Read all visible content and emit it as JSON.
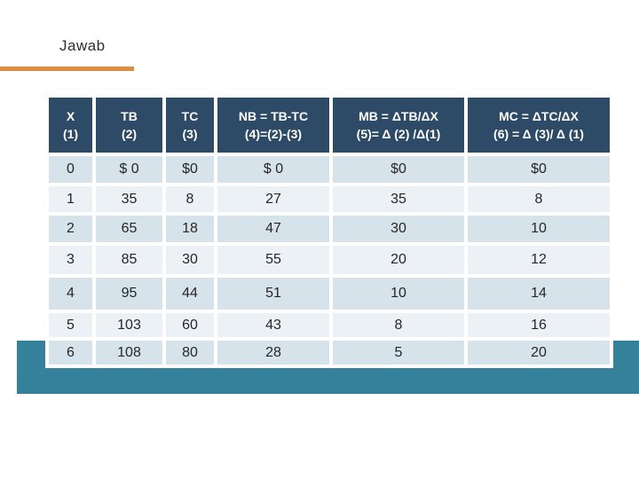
{
  "title": "Jawab",
  "table": {
    "headers": [
      {
        "line1": "X",
        "line2": "(1)"
      },
      {
        "line1": "TB",
        "line2": "(2)"
      },
      {
        "line1": "TC",
        "line2": "(3)"
      },
      {
        "line1": "NB = TB-TC",
        "line2": "(4)=(2)-(3)"
      },
      {
        "line1": "MB = ΔTB/ΔX",
        "line2": "(5)= Δ (2) /Δ(1)"
      },
      {
        "line1": "MC = ΔTC/ΔX",
        "line2": "(6) = Δ (3)/ Δ (1)"
      }
    ],
    "rows": [
      [
        "0",
        "$ 0",
        "$0",
        "$ 0",
        "$0",
        "$0"
      ],
      [
        "1",
        "35",
        "8",
        "27",
        "35",
        "8"
      ],
      [
        "2",
        "65",
        "18",
        "47",
        "30",
        "10"
      ],
      [
        "3",
        "85",
        "30",
        "55",
        "20",
        "12"
      ],
      [
        "4",
        "95",
        "44",
        "51",
        "10",
        "14"
      ],
      [
        "5",
        "103",
        "60",
        "43",
        "8",
        "16"
      ],
      [
        "6",
        "108",
        "80",
        "28",
        "5",
        "20"
      ]
    ]
  },
  "colors": {
    "header_bg": "#2D4A66",
    "header_text": "#FFFFFF",
    "row_dark": "#D7E3EB",
    "row_light": "#ECF1F5",
    "accent_band": "#35819B",
    "accent_line": "#DE8C3E",
    "body_text": "#262626",
    "title_text": "#2E2E2E"
  }
}
